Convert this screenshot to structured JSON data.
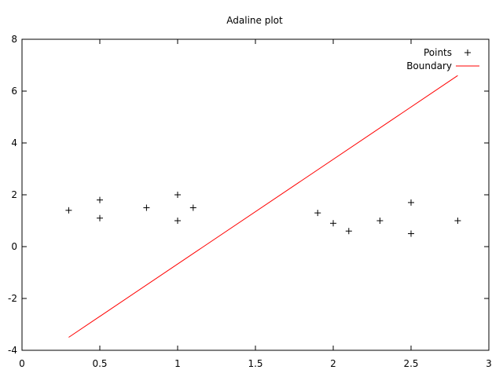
{
  "chart_data": {
    "type": "scatter",
    "title": "Adaline plot",
    "xlabel": "",
    "ylabel": "",
    "xlim": [
      0,
      3
    ],
    "ylim": [
      -4,
      8
    ],
    "x_ticks": [
      "0",
      "0.5",
      "1",
      "1.5",
      "2",
      "2.5",
      "3"
    ],
    "y_ticks": [
      "-4",
      "-2",
      "0",
      "2",
      "4",
      "6",
      "8"
    ],
    "grid": false,
    "legend_position": "top-right",
    "series": [
      {
        "name": "Points",
        "kind": "points",
        "marker": "plus",
        "color": "#000000",
        "points": [
          {
            "x": 0.3,
            "y": 1.4
          },
          {
            "x": 0.5,
            "y": 1.8
          },
          {
            "x": 0.5,
            "y": 1.1
          },
          {
            "x": 0.8,
            "y": 1.5
          },
          {
            "x": 1.0,
            "y": 2.0
          },
          {
            "x": 1.0,
            "y": 1.0
          },
          {
            "x": 1.1,
            "y": 1.5
          },
          {
            "x": 1.9,
            "y": 1.3
          },
          {
            "x": 2.0,
            "y": 0.9
          },
          {
            "x": 2.1,
            "y": 0.6
          },
          {
            "x": 2.3,
            "y": 1.0
          },
          {
            "x": 2.5,
            "y": 1.7
          },
          {
            "x": 2.5,
            "y": 0.5
          },
          {
            "x": 2.8,
            "y": 1.0
          }
        ]
      },
      {
        "name": "Boundary",
        "kind": "line",
        "color": "#ff0000",
        "points": [
          {
            "x": 0.3,
            "y": -3.5
          },
          {
            "x": 2.8,
            "y": 6.6
          }
        ]
      }
    ]
  }
}
